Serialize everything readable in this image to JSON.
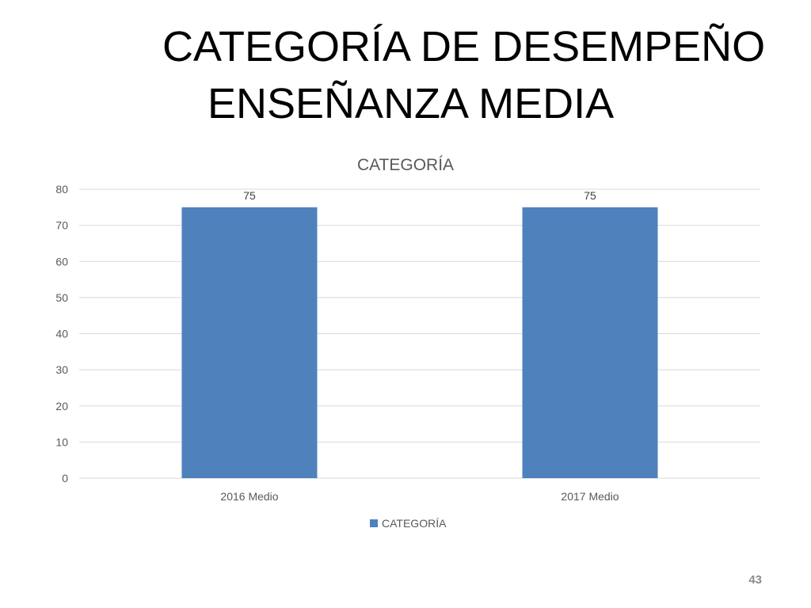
{
  "slide": {
    "title_line1": "CATEGORÍA DE DESEMPEÑO",
    "title_line2": "ENSEÑANZA MEDIA",
    "page_number": "43"
  },
  "colors": {
    "bar": "#4f81bd",
    "gridline": "#d9d9d9",
    "axis_text": "#595959",
    "chart_title": "#595959"
  },
  "chart_data": {
    "type": "bar",
    "title": "CATEGORÍA",
    "categories": [
      "2016 Medio",
      "2017 Medio"
    ],
    "series": [
      {
        "name": "CATEGORÍA",
        "values": [
          75,
          75
        ]
      }
    ],
    "ylim": [
      0,
      80
    ],
    "yticks": [
      0,
      10,
      20,
      30,
      40,
      50,
      60,
      70,
      80
    ],
    "data_labels": true,
    "grid": true,
    "legend": "bottom"
  }
}
